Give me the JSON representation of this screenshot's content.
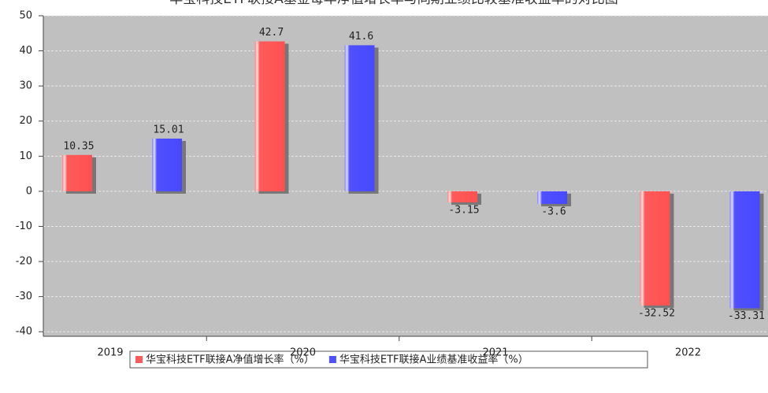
{
  "chart_data": {
    "type": "bar",
    "title": "华宝科技ETF联接A基金每年净值增长率与同期业绩比较基准收益率的对比图",
    "categories": [
      "2019",
      "2020",
      "2021",
      "2022"
    ],
    "series": [
      {
        "name": "华宝科技ETF联接A净值增长率（%）",
        "color": "#ff5a5a",
        "values": [
          10.35,
          42.7,
          -3.15,
          -32.52
        ]
      },
      {
        "name": "华宝科技ETF联接A业绩基准收益率（%）",
        "color": "#5050ff",
        "values": [
          15.01,
          41.6,
          -3.6,
          -33.31
        ]
      }
    ],
    "ylim": [
      -41.3,
      50
    ],
    "yticks": [
      -40,
      -30,
      -20,
      -10,
      0,
      10,
      20,
      30,
      40,
      50
    ],
    "grid": true
  }
}
